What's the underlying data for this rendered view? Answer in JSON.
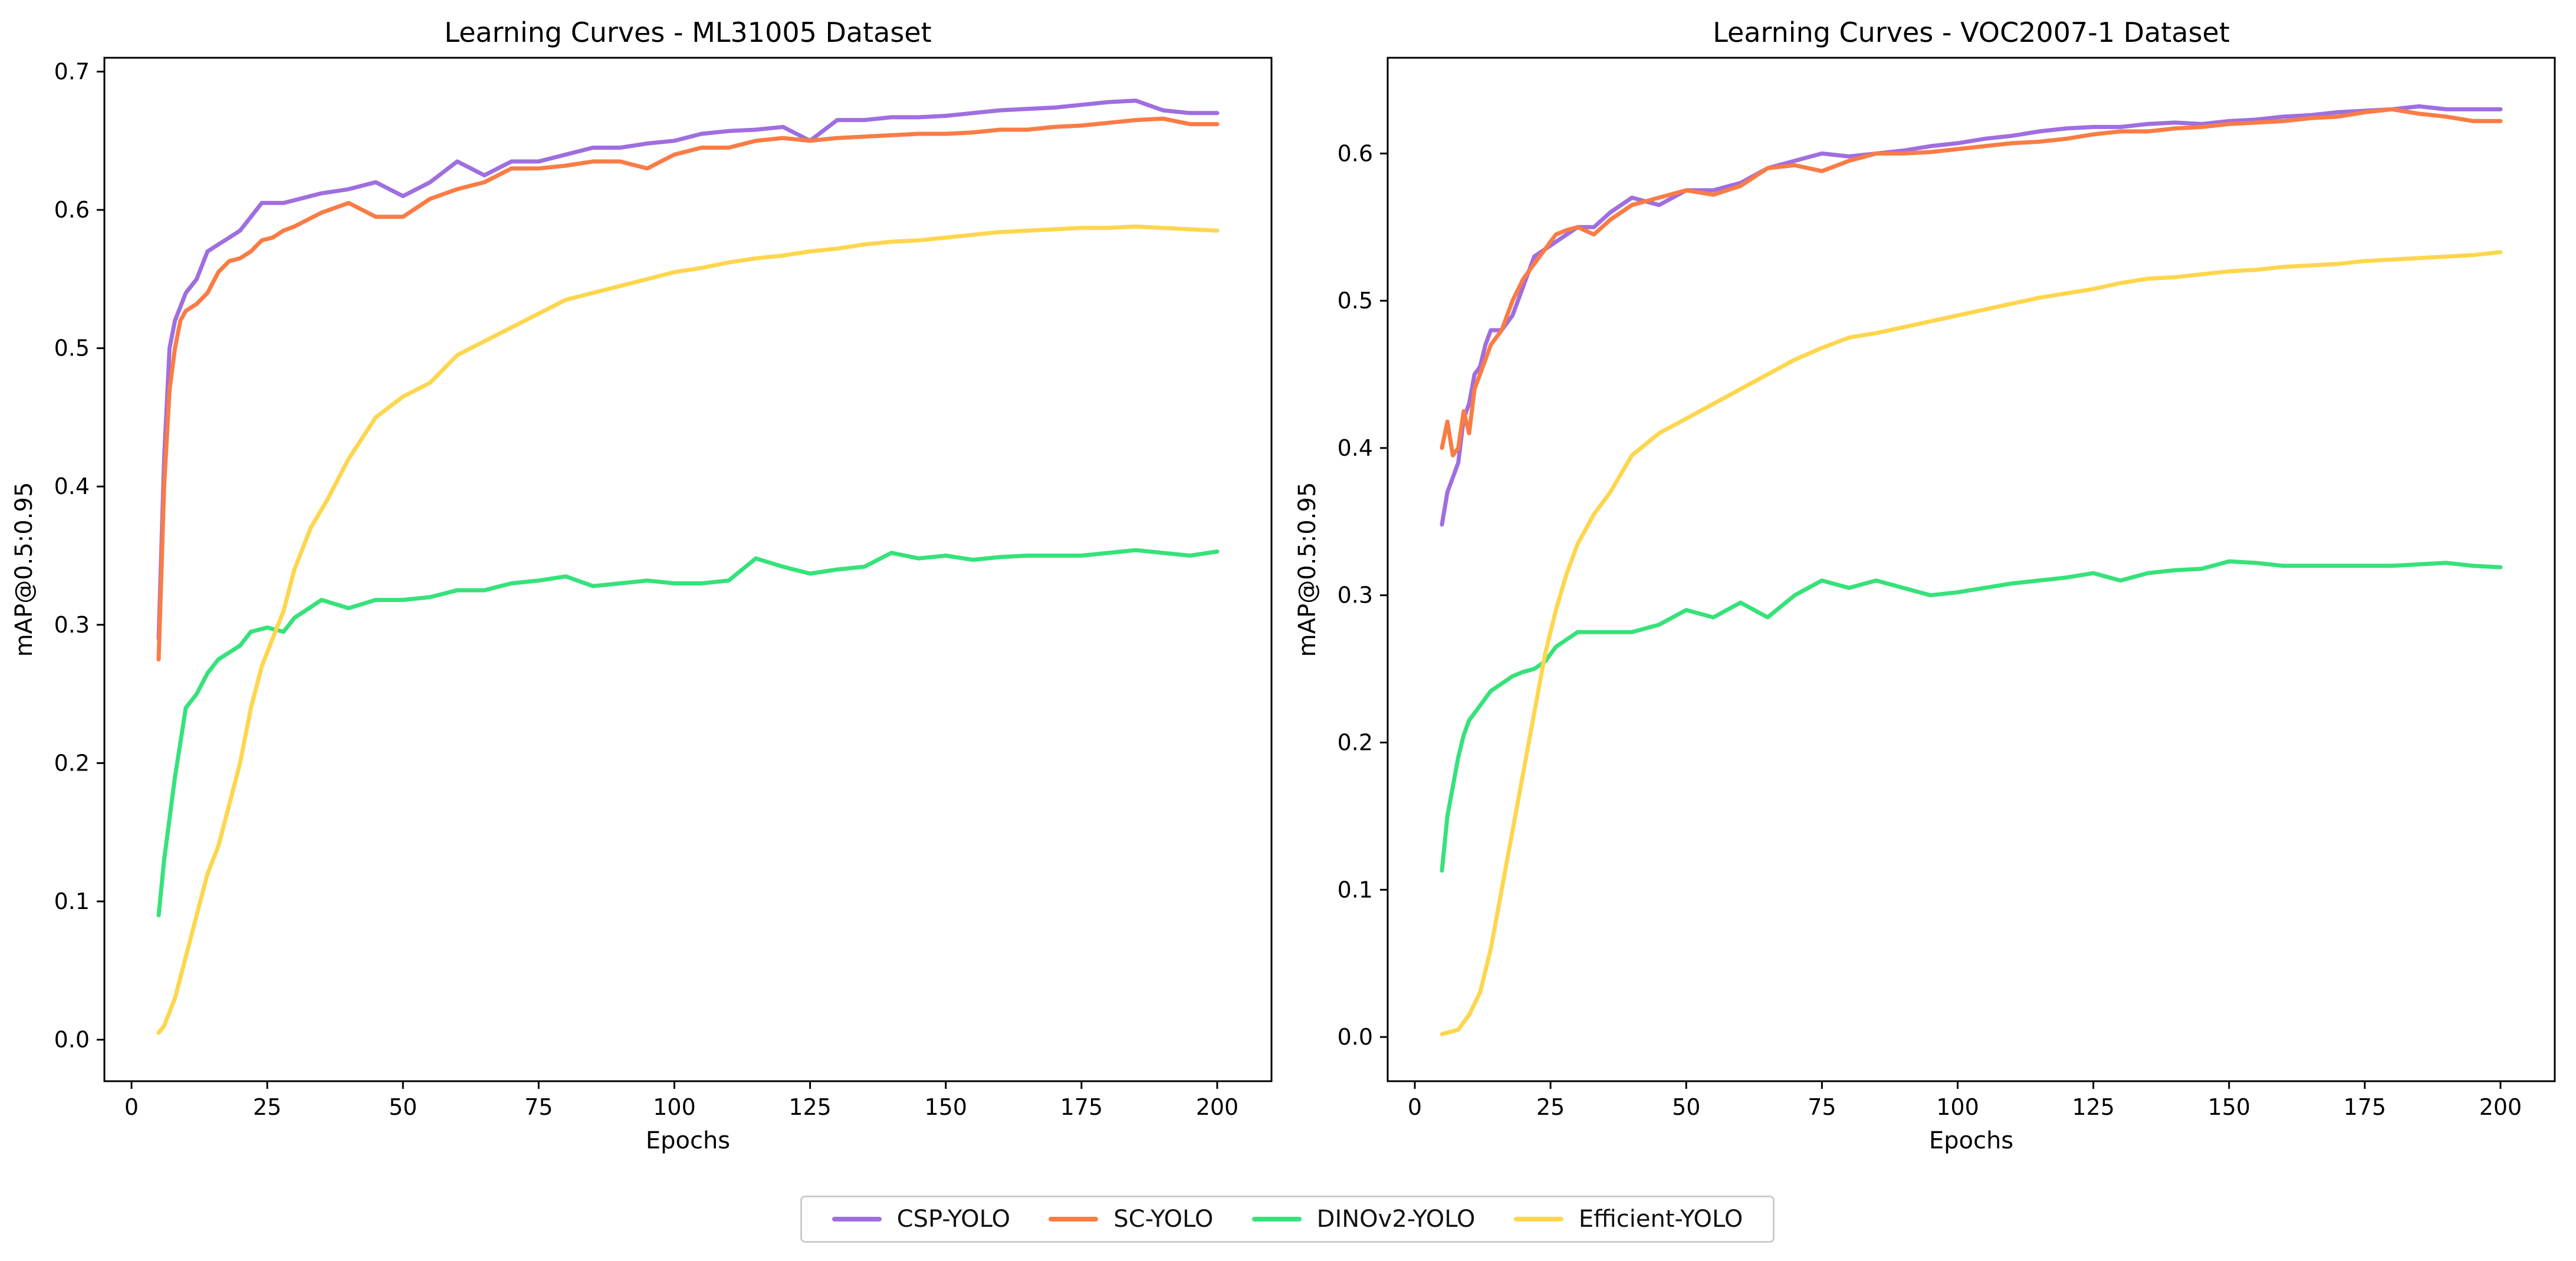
{
  "chart_data": [
    {
      "type": "line",
      "title": "Learning Curves - ML31005 Dataset",
      "xlabel": "Epochs",
      "ylabel": "mAP@0.5:0.95",
      "xlim": [
        -5,
        210
      ],
      "ylim": [
        -0.03,
        0.71
      ],
      "xticks": [
        "0",
        "25",
        "50",
        "75",
        "100",
        "125",
        "150",
        "175",
        "200"
      ],
      "yticks": [
        "0.0",
        "0.1",
        "0.2",
        "0.3",
        "0.4",
        "0.5",
        "0.6",
        "0.7"
      ],
      "grid": false,
      "series": [
        {
          "name": "CSP-YOLO",
          "color": "#9f6ee0",
          "x": [
            5,
            6,
            7,
            8,
            9,
            10,
            12,
            14,
            16,
            18,
            20,
            22,
            24,
            26,
            28,
            30,
            35,
            40,
            45,
            50,
            55,
            60,
            65,
            70,
            75,
            80,
            85,
            90,
            95,
            100,
            105,
            110,
            115,
            120,
            125,
            130,
            135,
            140,
            145,
            150,
            155,
            160,
            165,
            170,
            175,
            180,
            185,
            190,
            195,
            200
          ],
          "y": [
            0.29,
            0.42,
            0.5,
            0.52,
            0.53,
            0.54,
            0.55,
            0.57,
            0.575,
            0.58,
            0.585,
            0.595,
            0.605,
            0.605,
            0.605,
            0.607,
            0.612,
            0.615,
            0.62,
            0.61,
            0.62,
            0.635,
            0.625,
            0.635,
            0.635,
            0.64,
            0.645,
            0.645,
            0.648,
            0.65,
            0.655,
            0.657,
            0.658,
            0.66,
            0.65,
            0.665,
            0.665,
            0.667,
            0.667,
            0.668,
            0.67,
            0.672,
            0.673,
            0.674,
            0.676,
            0.678,
            0.679,
            0.672,
            0.67,
            0.67
          ]
        },
        {
          "name": "SC-YOLO",
          "color": "#fa7c45",
          "x": [
            5,
            6,
            7,
            8,
            9,
            10,
            12,
            14,
            16,
            18,
            20,
            22,
            24,
            26,
            28,
            30,
            35,
            40,
            45,
            50,
            55,
            60,
            65,
            70,
            75,
            80,
            85,
            90,
            95,
            100,
            105,
            110,
            115,
            120,
            125,
            130,
            135,
            140,
            145,
            150,
            155,
            160,
            165,
            170,
            175,
            180,
            185,
            190,
            195,
            200
          ],
          "y": [
            0.275,
            0.4,
            0.47,
            0.5,
            0.52,
            0.527,
            0.532,
            0.54,
            0.555,
            0.563,
            0.565,
            0.57,
            0.578,
            0.58,
            0.585,
            0.588,
            0.598,
            0.605,
            0.595,
            0.595,
            0.608,
            0.615,
            0.62,
            0.63,
            0.63,
            0.632,
            0.635,
            0.635,
            0.63,
            0.64,
            0.645,
            0.645,
            0.65,
            0.652,
            0.65,
            0.652,
            0.653,
            0.654,
            0.655,
            0.655,
            0.656,
            0.658,
            0.658,
            0.66,
            0.661,
            0.663,
            0.665,
            0.666,
            0.662,
            0.662
          ]
        },
        {
          "name": "DINOv2-YOLO",
          "color": "#36e27a",
          "x": [
            5,
            6,
            8,
            10,
            12,
            14,
            16,
            18,
            20,
            22,
            25,
            28,
            30,
            35,
            40,
            45,
            50,
            55,
            60,
            65,
            70,
            75,
            80,
            85,
            90,
            95,
            100,
            105,
            110,
            115,
            120,
            125,
            130,
            135,
            140,
            145,
            150,
            155,
            160,
            165,
            170,
            175,
            180,
            185,
            190,
            195,
            200
          ],
          "y": [
            0.09,
            0.13,
            0.19,
            0.24,
            0.25,
            0.265,
            0.275,
            0.28,
            0.285,
            0.295,
            0.298,
            0.295,
            0.305,
            0.318,
            0.312,
            0.318,
            0.318,
            0.32,
            0.325,
            0.325,
            0.33,
            0.332,
            0.335,
            0.328,
            0.33,
            0.332,
            0.33,
            0.33,
            0.332,
            0.348,
            0.342,
            0.337,
            0.34,
            0.342,
            0.352,
            0.348,
            0.35,
            0.347,
            0.349,
            0.35,
            0.35,
            0.35,
            0.352,
            0.354,
            0.352,
            0.35,
            0.353
          ]
        },
        {
          "name": "Efficient-YOLO",
          "color": "#fed64e",
          "x": [
            5,
            6,
            8,
            10,
            12,
            14,
            16,
            18,
            20,
            22,
            24,
            26,
            28,
            30,
            33,
            36,
            40,
            45,
            50,
            55,
            60,
            65,
            70,
            75,
            80,
            85,
            90,
            95,
            100,
            105,
            110,
            115,
            120,
            125,
            130,
            135,
            140,
            145,
            150,
            155,
            160,
            165,
            170,
            175,
            180,
            185,
            190,
            195,
            200
          ],
          "y": [
            0.005,
            0.01,
            0.03,
            0.06,
            0.09,
            0.12,
            0.14,
            0.17,
            0.2,
            0.24,
            0.27,
            0.29,
            0.31,
            0.34,
            0.37,
            0.39,
            0.42,
            0.45,
            0.465,
            0.475,
            0.495,
            0.505,
            0.515,
            0.525,
            0.535,
            0.54,
            0.545,
            0.55,
            0.555,
            0.558,
            0.562,
            0.565,
            0.567,
            0.57,
            0.572,
            0.575,
            0.577,
            0.578,
            0.58,
            0.582,
            0.584,
            0.585,
            0.586,
            0.587,
            0.587,
            0.588,
            0.587,
            0.586,
            0.585
          ]
        }
      ]
    },
    {
      "type": "line",
      "title": "Learning Curves - VOC2007-1 Dataset",
      "xlabel": "Epochs",
      "ylabel": "mAP@0.5:0.95",
      "xlim": [
        -5,
        210
      ],
      "ylim": [
        -0.03,
        0.665
      ],
      "xticks": [
        "0",
        "25",
        "50",
        "75",
        "100",
        "125",
        "150",
        "175",
        "200"
      ],
      "yticks": [
        "0.0",
        "0.1",
        "0.2",
        "0.3",
        "0.4",
        "0.5",
        "0.6"
      ],
      "grid": false,
      "series": [
        {
          "name": "CSP-YOLO",
          "color": "#9f6ee0",
          "x": [
            5,
            6,
            7,
            8,
            9,
            10,
            11,
            12,
            13,
            14,
            16,
            18,
            20,
            22,
            24,
            26,
            28,
            30,
            33,
            36,
            40,
            45,
            50,
            55,
            60,
            65,
            70,
            75,
            80,
            85,
            90,
            95,
            100,
            105,
            110,
            115,
            120,
            125,
            130,
            135,
            140,
            145,
            150,
            155,
            160,
            165,
            170,
            175,
            180,
            185,
            190,
            195,
            200
          ],
          "y": [
            0.348,
            0.37,
            0.38,
            0.39,
            0.42,
            0.43,
            0.45,
            0.455,
            0.47,
            0.48,
            0.48,
            0.49,
            0.51,
            0.53,
            0.535,
            0.54,
            0.545,
            0.55,
            0.55,
            0.56,
            0.57,
            0.565,
            0.575,
            0.575,
            0.58,
            0.59,
            0.595,
            0.6,
            0.598,
            0.6,
            0.602,
            0.605,
            0.607,
            0.61,
            0.612,
            0.615,
            0.617,
            0.618,
            0.618,
            0.62,
            0.621,
            0.62,
            0.622,
            0.623,
            0.625,
            0.626,
            0.628,
            0.629,
            0.63,
            0.632,
            0.63,
            0.63,
            0.63
          ]
        },
        {
          "name": "SC-YOLO",
          "color": "#fa7c45",
          "x": [
            5,
            6,
            7,
            8,
            9,
            10,
            11,
            12,
            13,
            14,
            16,
            18,
            20,
            22,
            24,
            26,
            28,
            30,
            33,
            36,
            40,
            45,
            50,
            55,
            60,
            65,
            70,
            75,
            80,
            85,
            90,
            95,
            100,
            105,
            110,
            115,
            120,
            125,
            130,
            135,
            140,
            145,
            150,
            155,
            160,
            165,
            170,
            175,
            180,
            185,
            190,
            195,
            200
          ],
          "y": [
            0.4,
            0.418,
            0.395,
            0.4,
            0.425,
            0.41,
            0.44,
            0.45,
            0.46,
            0.47,
            0.48,
            0.5,
            0.515,
            0.525,
            0.535,
            0.545,
            0.548,
            0.55,
            0.545,
            0.555,
            0.565,
            0.57,
            0.575,
            0.572,
            0.578,
            0.59,
            0.592,
            0.588,
            0.595,
            0.6,
            0.6,
            0.601,
            0.603,
            0.605,
            0.607,
            0.608,
            0.61,
            0.613,
            0.615,
            0.615,
            0.617,
            0.618,
            0.62,
            0.621,
            0.622,
            0.624,
            0.625,
            0.628,
            0.63,
            0.627,
            0.625,
            0.622,
            0.622
          ]
        },
        {
          "name": "DINOv2-YOLO",
          "color": "#36e27a",
          "x": [
            5,
            6,
            7,
            8,
            9,
            10,
            12,
            14,
            16,
            18,
            20,
            22,
            24,
            26,
            28,
            30,
            35,
            40,
            45,
            50,
            55,
            60,
            65,
            70,
            75,
            80,
            85,
            90,
            95,
            100,
            105,
            110,
            115,
            120,
            125,
            130,
            135,
            140,
            145,
            150,
            155,
            160,
            165,
            170,
            175,
            180,
            185,
            190,
            195,
            200
          ],
          "y": [
            0.113,
            0.15,
            0.17,
            0.19,
            0.205,
            0.215,
            0.225,
            0.235,
            0.24,
            0.245,
            0.248,
            0.25,
            0.255,
            0.265,
            0.27,
            0.275,
            0.275,
            0.275,
            0.28,
            0.29,
            0.285,
            0.295,
            0.285,
            0.3,
            0.31,
            0.305,
            0.31,
            0.305,
            0.3,
            0.302,
            0.305,
            0.308,
            0.31,
            0.312,
            0.315,
            0.31,
            0.315,
            0.317,
            0.318,
            0.323,
            0.322,
            0.32,
            0.32,
            0.32,
            0.32,
            0.32,
            0.321,
            0.322,
            0.32,
            0.319
          ]
        },
        {
          "name": "Efficient-YOLO",
          "color": "#fed64e",
          "x": [
            5,
            6,
            8,
            10,
            12,
            14,
            16,
            18,
            20,
            22,
            24,
            26,
            28,
            30,
            33,
            36,
            40,
            45,
            50,
            55,
            60,
            65,
            70,
            75,
            80,
            85,
            90,
            95,
            100,
            105,
            110,
            115,
            120,
            125,
            130,
            135,
            140,
            145,
            150,
            155,
            160,
            165,
            170,
            175,
            180,
            185,
            190,
            195,
            200
          ],
          "y": [
            0.002,
            0.003,
            0.005,
            0.015,
            0.03,
            0.06,
            0.1,
            0.14,
            0.18,
            0.22,
            0.26,
            0.29,
            0.315,
            0.335,
            0.355,
            0.37,
            0.395,
            0.41,
            0.42,
            0.43,
            0.44,
            0.45,
            0.46,
            0.468,
            0.475,
            0.478,
            0.482,
            0.486,
            0.49,
            0.494,
            0.498,
            0.502,
            0.505,
            0.508,
            0.512,
            0.515,
            0.516,
            0.518,
            0.52,
            0.521,
            0.523,
            0.524,
            0.525,
            0.527,
            0.528,
            0.529,
            0.53,
            0.531,
            0.533
          ]
        }
      ]
    }
  ],
  "legend": {
    "items": [
      {
        "label": "CSP-YOLO",
        "color": "#9f6ee0"
      },
      {
        "label": "SC-YOLO",
        "color": "#fa7c45"
      },
      {
        "label": "DINOv2-YOLO",
        "color": "#36e27a"
      },
      {
        "label": "Efficient-YOLO",
        "color": "#fed64e"
      }
    ]
  }
}
